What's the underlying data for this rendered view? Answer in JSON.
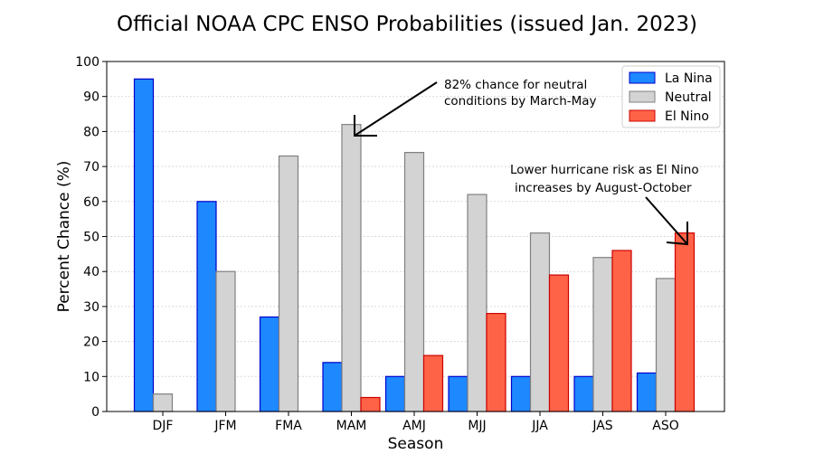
{
  "chart_data": {
    "type": "bar",
    "title": "Official NOAA CPC ENSO Probabilities (issued Jan. 2023)",
    "xlabel": "Season",
    "ylabel": "Percent Chance (%)",
    "ylim": [
      0,
      100
    ],
    "yticks": [
      "0",
      "10",
      "20",
      "30",
      "40",
      "50",
      "60",
      "70",
      "80",
      "90",
      "100"
    ],
    "grid": true,
    "legend_position": "top-right",
    "categories": [
      "DJF",
      "JFM",
      "FMA",
      "MAM",
      "AMJ",
      "MJJ",
      "JJA",
      "JAS",
      "ASO"
    ],
    "series": [
      {
        "name": "La Nina",
        "color": "#1e88ff",
        "edge": "#0000cc",
        "values": [
          95,
          60,
          27,
          14,
          10,
          10,
          10,
          10,
          11
        ]
      },
      {
        "name": "Neutral",
        "color": "#d3d3d3",
        "edge": "#808080",
        "values": [
          5,
          40,
          73,
          82,
          74,
          62,
          51,
          44,
          38
        ]
      },
      {
        "name": "El Nino",
        "color": "#ff6347",
        "edge": "#cc0000",
        "values": [
          0,
          0,
          0,
          4,
          16,
          28,
          39,
          46,
          51
        ]
      }
    ],
    "annotations": [
      {
        "lines": [
          "82% chance for neutral",
          "conditions by March-May"
        ],
        "points_to": {
          "category": "MAM",
          "series": "Neutral",
          "value": 82
        }
      },
      {
        "lines": [
          "Lower hurricane risk as El Nino",
          "increases by August-October"
        ],
        "points_to": {
          "category": "ASO",
          "series": "El Nino",
          "value": 51
        }
      }
    ]
  }
}
